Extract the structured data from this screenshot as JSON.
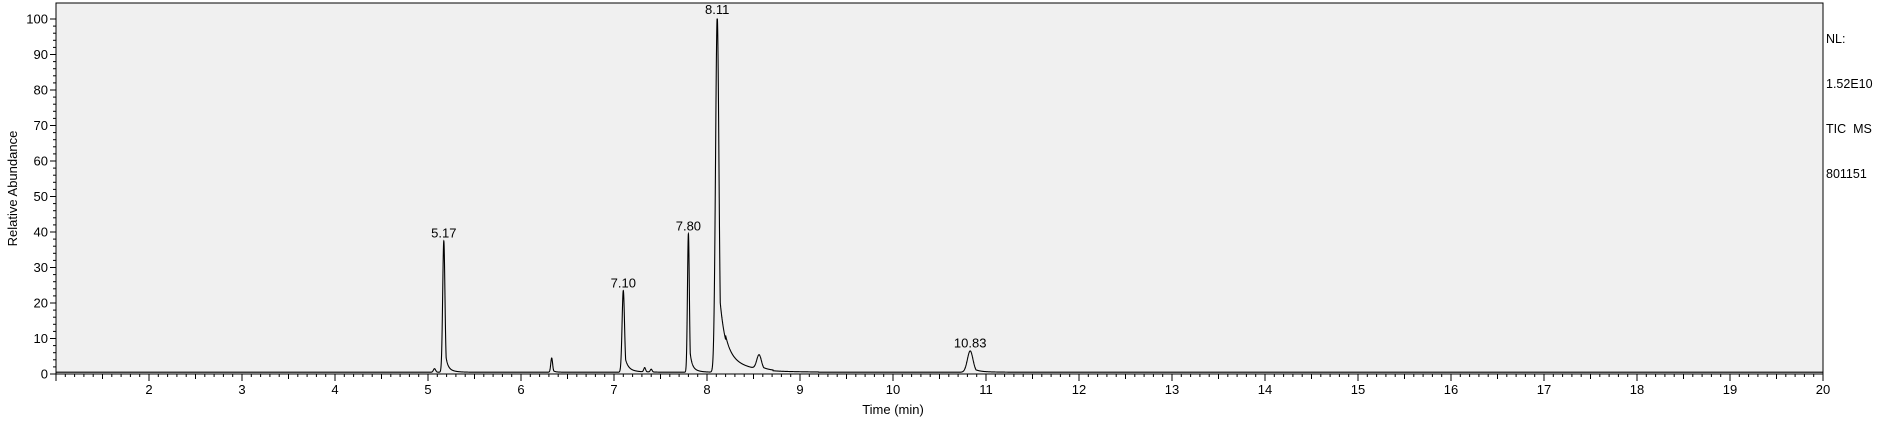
{
  "chart_data": {
    "type": "line",
    "xlabel": "Time (min)",
    "ylabel": "Relative Abundance",
    "xlim": [
      1.0,
      20.0
    ],
    "ylim": [
      0,
      100
    ],
    "x_ticks": [
      "2",
      "3",
      "4",
      "5",
      "6",
      "7",
      "8",
      "9",
      "10",
      "11",
      "12",
      "13",
      "14",
      "15",
      "16",
      "17",
      "18",
      "19",
      "20"
    ],
    "y_ticks": [
      "0",
      "10",
      "20",
      "30",
      "40",
      "50",
      "60",
      "70",
      "80",
      "90",
      "100"
    ],
    "grid": false,
    "colors": {
      "plot_background": "#f0f0f0",
      "trace": "#000000"
    },
    "peaks": [
      {
        "x": 5.17,
        "y": 37,
        "label": "5.17",
        "width": 0.012,
        "tail": 0.02
      },
      {
        "x": 6.33,
        "y": 4,
        "label": "",
        "width": 0.01,
        "tail": 0.015
      },
      {
        "x": 7.1,
        "y": 23,
        "label": "7.10",
        "width": 0.013,
        "tail": 0.03
      },
      {
        "x": 7.8,
        "y": 39,
        "label": "7.80",
        "width": 0.01,
        "tail": 0.02
      },
      {
        "x": 8.11,
        "y": 100,
        "label": "8.11",
        "width": 0.018,
        "tail": 0.06
      },
      {
        "x": 8.56,
        "y": 4,
        "label": "",
        "width": 0.025,
        "tail": 0.05
      },
      {
        "x": 10.83,
        "y": 6,
        "label": "10.83",
        "width": 0.03,
        "tail": 0.05
      }
    ],
    "minor_peaks": [
      {
        "x": 5.07,
        "y": 1,
        "width": 0.012,
        "tail": 0.01
      },
      {
        "x": 7.33,
        "y": 1.2,
        "width": 0.01,
        "tail": 0.01
      },
      {
        "x": 7.4,
        "y": 0.8,
        "width": 0.01,
        "tail": 0.01
      }
    ],
    "series": [
      {
        "values_description": "",
        "baseline": 0.5
      }
    ]
  },
  "header": {
    "nl_label": "NL:",
    "nl_value": "1.52E10",
    "scan_filter": "TIC  MS",
    "sample_id": "801151"
  }
}
